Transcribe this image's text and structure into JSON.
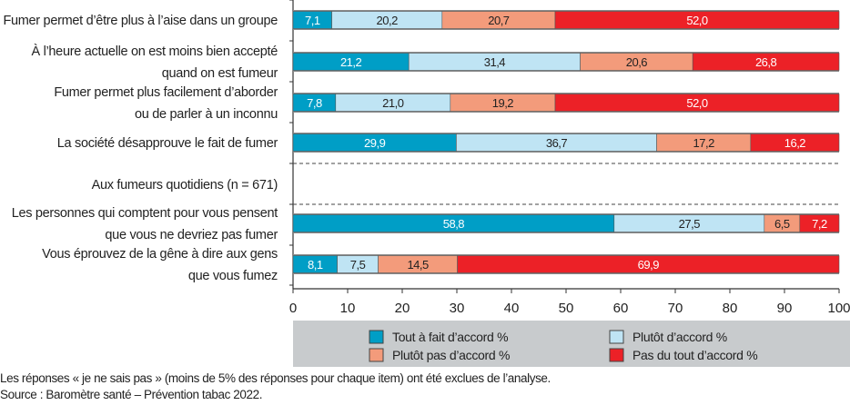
{
  "chart_data": {
    "type": "bar",
    "orientation": "horizontal-stacked",
    "xlim": [
      0,
      100
    ],
    "xticks": [
      0,
      10,
      20,
      30,
      40,
      50,
      60,
      70,
      80,
      90,
      100
    ],
    "rows": [
      {
        "label": [
          "Fumer permet d’être plus à l’aise dans un groupe"
        ],
        "values": [
          7.1,
          20.2,
          20.7,
          52.0
        ],
        "labels": [
          "7,1",
          "20,2",
          "20,7",
          "52,0"
        ]
      },
      {
        "label": [
          "À l’heure actuelle on est moins bien accepté",
          "quand on est fumeur"
        ],
        "values": [
          21.2,
          31.4,
          20.6,
          26.8
        ],
        "labels": [
          "21,2",
          "31,4",
          "20,6",
          "26,8"
        ]
      },
      {
        "label": [
          "Fumer permet plus facilement d’aborder",
          "ou de parler à un inconnu"
        ],
        "values": [
          7.8,
          21.0,
          19.2,
          52.0
        ],
        "labels": [
          "7,8",
          "21,0",
          "19,2",
          "52,0"
        ]
      },
      {
        "label": [
          "La société désapprouve le fait de fumer"
        ],
        "values": [
          29.9,
          36.7,
          17.2,
          16.2
        ],
        "labels": [
          "29,9",
          "36,7",
          "17,2",
          "16,2"
        ]
      },
      {
        "label": [
          "Aux fumeurs quotidiens (n = 671)"
        ],
        "section": true
      },
      {
        "label": [
          "Les personnes qui comptent pour vous pensent",
          "que vous ne devriez pas fumer"
        ],
        "values": [
          58.8,
          27.5,
          6.5,
          7.2
        ],
        "labels": [
          "58,8",
          "27,5",
          "6,5",
          "7,2"
        ]
      },
      {
        "label": [
          "Vous éprouvez de la gêne à dire aux gens",
          "que vous fumez"
        ],
        "values": [
          8.1,
          7.5,
          14.5,
          69.9
        ],
        "labels": [
          "8,1",
          "7,5",
          "14,5",
          "69,9"
        ]
      }
    ],
    "series": [
      {
        "name": "Tout à fait d’accord %",
        "color": "#009ec6"
      },
      {
        "name": "Plutôt d’accord %",
        "color": "#bfe4f4"
      },
      {
        "name": "Plutôt pas d’accord %",
        "color": "#f39b7b"
      },
      {
        "name": "Pas du tout d’accord %",
        "color": "#ec2127"
      }
    ],
    "legend_position": "bottom"
  },
  "notes": {
    "line1": "Les réponses « je ne sais pas » (moins de 5% des réponses pour chaque item) ont été exclues de l’analyse.",
    "line2": "Source : Baromètre santé – Prévention tabac 2022."
  }
}
